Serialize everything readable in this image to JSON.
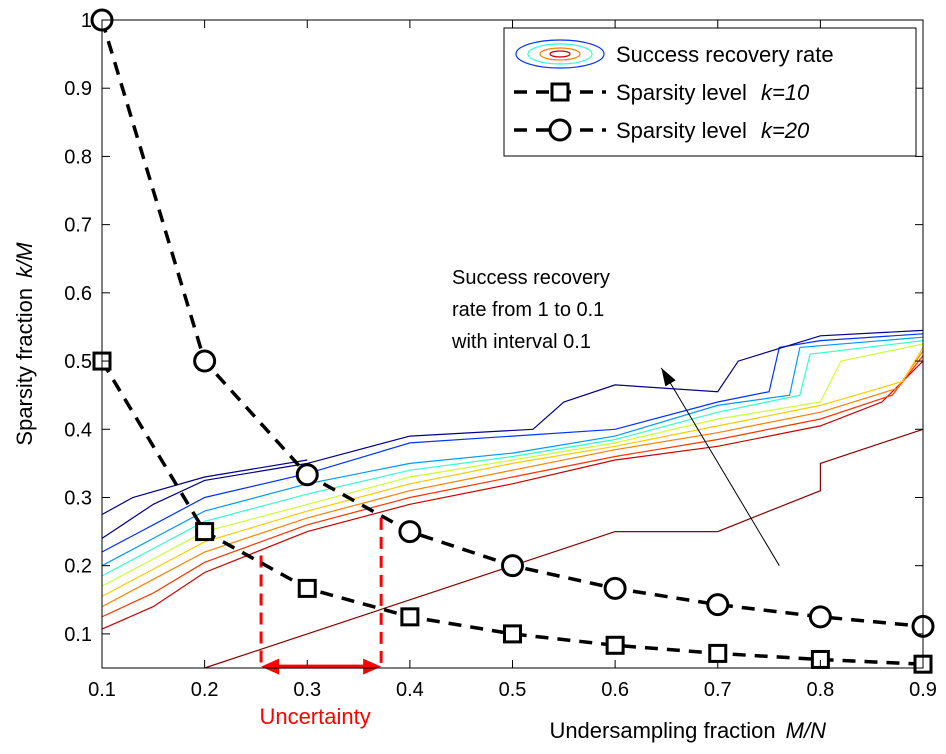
{
  "chart_data": {
    "type": "line",
    "xlabel": "Undersampling fraction",
    "xlabel_var": "M/N",
    "ylabel": "Sparsity fraction",
    "ylabel_var": "k/M",
    "xlim": [
      0.1,
      0.9
    ],
    "ylim": [
      0.05,
      1.0
    ],
    "xticks": [
      "0.1",
      "0.2",
      "0.3",
      "0.4",
      "0.5",
      "0.6",
      "0.7",
      "0.8",
      "0.9"
    ],
    "yticks": [
      "0.1",
      "0.2",
      "0.3",
      "0.4",
      "0.5",
      "0.6",
      "0.7",
      "0.8",
      "0.9",
      "1"
    ],
    "grid": false,
    "legend_position": "top-right",
    "legend": [
      {
        "label": "Success recovery rate",
        "symbol": "contour"
      },
      {
        "label": "Sparsity level ",
        "var": "k=10",
        "symbol": "square"
      },
      {
        "label": "Sparsity level ",
        "var": "k=20",
        "symbol": "circle"
      }
    ],
    "series": [
      {
        "name": "Sparsity level k=10",
        "marker": "square",
        "linestyle": "dashed",
        "color": "#000000",
        "x": [
          0.1,
          0.2,
          0.3,
          0.4,
          0.5,
          0.6,
          0.7,
          0.8,
          0.9
        ],
        "y": [
          0.5,
          0.25,
          0.1667,
          0.125,
          0.1,
          0.0833,
          0.0714,
          0.0625,
          0.0556
        ]
      },
      {
        "name": "Sparsity level k=20",
        "marker": "circle",
        "linestyle": "dashed",
        "color": "#000000",
        "x": [
          0.1,
          0.2,
          0.3,
          0.4,
          0.5,
          0.6,
          0.7,
          0.8,
          0.9
        ],
        "y": [
          1.0,
          0.5,
          0.3333,
          0.25,
          0.2,
          0.1667,
          0.1429,
          0.125,
          0.1111
        ]
      }
    ],
    "contours": {
      "levels": [
        1.0,
        0.9,
        0.8,
        0.7,
        0.6,
        0.5,
        0.4,
        0.3,
        0.2,
        0.1
      ],
      "colors": [
        "#8b0000",
        "#cc0000",
        "#ff3300",
        "#ff8000",
        "#ffcc00",
        "#ccff33",
        "#33ffcc",
        "#0099ff",
        "#0033ff",
        "#00008b"
      ],
      "lines": [
        [
          [
            0.2,
            0.05
          ],
          [
            0.3,
            0.1
          ],
          [
            0.4,
            0.15
          ],
          [
            0.5,
            0.2
          ],
          [
            0.6,
            0.25
          ],
          [
            0.7,
            0.25
          ],
          [
            0.75,
            0.28
          ],
          [
            0.8,
            0.31
          ],
          [
            0.8,
            0.35
          ],
          [
            0.9,
            0.4
          ]
        ],
        [
          [
            0.1,
            0.107
          ],
          [
            0.15,
            0.14
          ],
          [
            0.2,
            0.19
          ],
          [
            0.3,
            0.25
          ],
          [
            0.4,
            0.29
          ],
          [
            0.5,
            0.32
          ],
          [
            0.6,
            0.355
          ],
          [
            0.7,
            0.375
          ],
          [
            0.8,
            0.405
          ],
          [
            0.86,
            0.44
          ],
          [
            0.9,
            0.5
          ]
        ],
        [
          [
            0.1,
            0.125
          ],
          [
            0.15,
            0.16
          ],
          [
            0.2,
            0.205
          ],
          [
            0.3,
            0.26
          ],
          [
            0.4,
            0.3
          ],
          [
            0.5,
            0.33
          ],
          [
            0.6,
            0.36
          ],
          [
            0.7,
            0.385
          ],
          [
            0.8,
            0.415
          ],
          [
            0.87,
            0.45
          ],
          [
            0.9,
            0.508
          ]
        ],
        [
          [
            0.1,
            0.14
          ],
          [
            0.15,
            0.18
          ],
          [
            0.2,
            0.22
          ],
          [
            0.3,
            0.27
          ],
          [
            0.4,
            0.31
          ],
          [
            0.5,
            0.34
          ],
          [
            0.6,
            0.37
          ],
          [
            0.7,
            0.395
          ],
          [
            0.8,
            0.425
          ],
          [
            0.875,
            0.46
          ],
          [
            0.9,
            0.515
          ]
        ],
        [
          [
            0.1,
            0.155
          ],
          [
            0.15,
            0.195
          ],
          [
            0.2,
            0.235
          ],
          [
            0.3,
            0.28
          ],
          [
            0.4,
            0.32
          ],
          [
            0.5,
            0.35
          ],
          [
            0.6,
            0.375
          ],
          [
            0.7,
            0.405
          ],
          [
            0.8,
            0.435
          ],
          [
            0.88,
            0.47
          ],
          [
            0.9,
            0.52
          ]
        ],
        [
          [
            0.1,
            0.17
          ],
          [
            0.15,
            0.21
          ],
          [
            0.2,
            0.25
          ],
          [
            0.3,
            0.29
          ],
          [
            0.4,
            0.33
          ],
          [
            0.5,
            0.355
          ],
          [
            0.6,
            0.38
          ],
          [
            0.7,
            0.415
          ],
          [
            0.8,
            0.44
          ],
          [
            0.82,
            0.5
          ],
          [
            0.9,
            0.525
          ]
        ],
        [
          [
            0.1,
            0.185
          ],
          [
            0.15,
            0.225
          ],
          [
            0.2,
            0.265
          ],
          [
            0.3,
            0.305
          ],
          [
            0.4,
            0.34
          ],
          [
            0.5,
            0.36
          ],
          [
            0.6,
            0.385
          ],
          [
            0.7,
            0.425
          ],
          [
            0.78,
            0.45
          ],
          [
            0.79,
            0.51
          ],
          [
            0.9,
            0.53
          ]
        ],
        [
          [
            0.1,
            0.2
          ],
          [
            0.15,
            0.24
          ],
          [
            0.2,
            0.28
          ],
          [
            0.3,
            0.32
          ],
          [
            0.4,
            0.35
          ],
          [
            0.5,
            0.365
          ],
          [
            0.6,
            0.39
          ],
          [
            0.7,
            0.435
          ],
          [
            0.77,
            0.45
          ],
          [
            0.78,
            0.52
          ],
          [
            0.9,
            0.535
          ]
        ],
        [
          [
            0.1,
            0.22
          ],
          [
            0.15,
            0.26
          ],
          [
            0.2,
            0.3
          ],
          [
            0.3,
            0.335
          ],
          [
            0.4,
            0.38
          ],
          [
            0.5,
            0.39
          ],
          [
            0.6,
            0.4
          ],
          [
            0.7,
            0.44
          ],
          [
            0.75,
            0.455
          ],
          [
            0.76,
            0.52
          ],
          [
            0.8,
            0.53
          ],
          [
            0.9,
            0.54
          ]
        ],
        [
          [
            0.1,
            0.24
          ],
          [
            0.15,
            0.29
          ],
          [
            0.2,
            0.325
          ],
          [
            0.3,
            0.35
          ],
          [
            0.4,
            0.39
          ],
          [
            0.52,
            0.4
          ],
          [
            0.55,
            0.44
          ],
          [
            0.6,
            0.465
          ],
          [
            0.7,
            0.455
          ],
          [
            0.72,
            0.5
          ],
          [
            0.8,
            0.537
          ],
          [
            0.9,
            0.545
          ]
        ],
        [
          [
            0.1,
            0.275
          ],
          [
            0.13,
            0.3
          ],
          [
            0.2,
            0.33
          ],
          [
            0.3,
            0.355
          ]
        ]
      ]
    },
    "annotations": {
      "arrow_text": [
        "Success recovery",
        "rate from 1 to 0.1",
        "with interval 0.1"
      ],
      "arrow_from": [
        0.76,
        0.2
      ],
      "arrow_to": [
        0.645,
        0.49
      ],
      "uncertainty_label": "Uncertainty",
      "uncertainty_range": [
        0.255,
        0.372
      ],
      "uncertainty_tops": [
        0.215,
        0.27
      ],
      "uncertainty_arrow_y": 0.052,
      "uncertainty_color": "#ff0000"
    }
  }
}
